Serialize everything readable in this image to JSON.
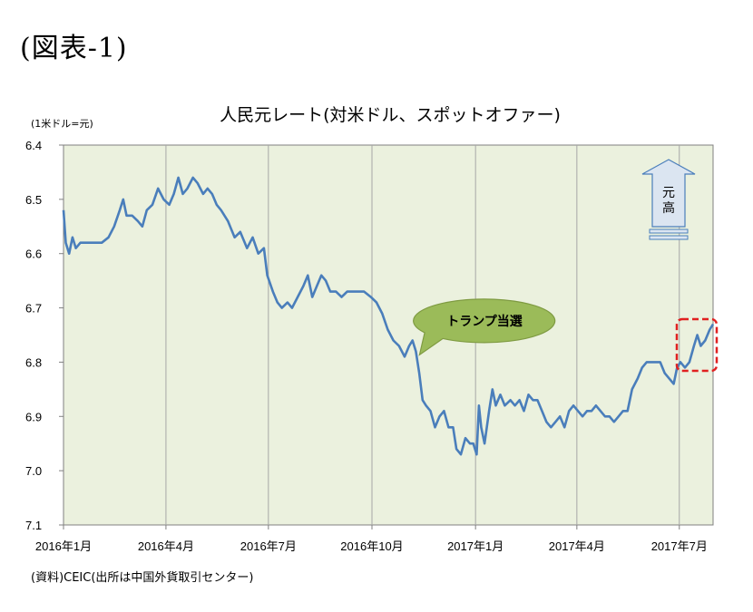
{
  "figure_label": "(図表-1)",
  "source_note": "(資料)CEIC(出所は中国外貨取引センター)",
  "callout_label": "トランプ当選",
  "arrow_label": [
    "元",
    "高"
  ],
  "colors": {
    "line": "#4a7ebb",
    "plot_bg": "#ebf1de",
    "callout_fill": "#9bbb59",
    "highlight": "#e02020",
    "arrow_fill": "#dbe5f1",
    "arrow_stroke": "#4a7ebb"
  },
  "chart_data": {
    "type": "line",
    "title": "人民元レート(対米ドル、スポットオファー)",
    "ylabel": "(1米ドル=元)",
    "ylim": [
      6.4,
      7.1
    ],
    "y_inverted": true,
    "yticks": [
      "6.4",
      "6.5",
      "6.6",
      "6.7",
      "6.8",
      "6.9",
      "7.0",
      "7.1"
    ],
    "xlim": [
      "2016-01-01",
      "2017-07-31"
    ],
    "xticks": [
      {
        "date": "2016-01-01",
        "label": "2016年1月"
      },
      {
        "date": "2016-04-01",
        "label": "2016年4月"
      },
      {
        "date": "2016-07-01",
        "label": "2016年7月"
      },
      {
        "date": "2016-10-01",
        "label": "2016年10月"
      },
      {
        "date": "2017-01-01",
        "label": "2017年1月"
      },
      {
        "date": "2017-04-01",
        "label": "2017年4月"
      },
      {
        "date": "2017-07-01",
        "label": "2017年7月"
      }
    ],
    "grid": "vertical",
    "annotation": {
      "label": "トランプ当選",
      "date": "2016-11-09",
      "value": 6.79
    },
    "series": [
      {
        "points": [
          [
            "2016-01-01",
            6.52
          ],
          [
            "2016-01-03",
            6.58
          ],
          [
            "2016-01-06",
            6.6
          ],
          [
            "2016-01-09",
            6.57
          ],
          [
            "2016-01-12",
            6.59
          ],
          [
            "2016-01-16",
            6.58
          ],
          [
            "2016-01-22",
            6.58
          ],
          [
            "2016-01-28",
            6.58
          ],
          [
            "2016-02-04",
            6.58
          ],
          [
            "2016-02-10",
            6.57
          ],
          [
            "2016-02-15",
            6.55
          ],
          [
            "2016-02-20",
            6.52
          ],
          [
            "2016-02-23",
            6.5
          ],
          [
            "2016-02-26",
            6.53
          ],
          [
            "2016-03-02",
            6.53
          ],
          [
            "2016-03-07",
            6.54
          ],
          [
            "2016-03-11",
            6.55
          ],
          [
            "2016-03-15",
            6.52
          ],
          [
            "2016-03-20",
            6.51
          ],
          [
            "2016-03-25",
            6.48
          ],
          [
            "2016-03-30",
            6.5
          ],
          [
            "2016-04-04",
            6.51
          ],
          [
            "2016-04-08",
            6.49
          ],
          [
            "2016-04-12",
            6.46
          ],
          [
            "2016-04-16",
            6.49
          ],
          [
            "2016-04-20",
            6.48
          ],
          [
            "2016-04-25",
            6.46
          ],
          [
            "2016-04-29",
            6.47
          ],
          [
            "2016-05-04",
            6.49
          ],
          [
            "2016-05-08",
            6.48
          ],
          [
            "2016-05-12",
            6.49
          ],
          [
            "2016-05-16",
            6.51
          ],
          [
            "2016-05-20",
            6.52
          ],
          [
            "2016-05-26",
            6.54
          ],
          [
            "2016-06-01",
            6.57
          ],
          [
            "2016-06-06",
            6.56
          ],
          [
            "2016-06-12",
            6.59
          ],
          [
            "2016-06-17",
            6.57
          ],
          [
            "2016-06-22",
            6.6
          ],
          [
            "2016-06-27",
            6.59
          ],
          [
            "2016-06-30",
            6.64
          ],
          [
            "2016-07-05",
            6.67
          ],
          [
            "2016-07-09",
            6.69
          ],
          [
            "2016-07-13",
            6.7
          ],
          [
            "2016-07-18",
            6.69
          ],
          [
            "2016-07-22",
            6.7
          ],
          [
            "2016-07-27",
            6.68
          ],
          [
            "2016-08-01",
            6.66
          ],
          [
            "2016-08-05",
            6.64
          ],
          [
            "2016-08-09",
            6.68
          ],
          [
            "2016-08-13",
            6.66
          ],
          [
            "2016-08-17",
            6.64
          ],
          [
            "2016-08-21",
            6.65
          ],
          [
            "2016-08-25",
            6.67
          ],
          [
            "2016-08-30",
            6.67
          ],
          [
            "2016-09-04",
            6.68
          ],
          [
            "2016-09-09",
            6.67
          ],
          [
            "2016-09-14",
            6.67
          ],
          [
            "2016-09-19",
            6.67
          ],
          [
            "2016-09-24",
            6.67
          ],
          [
            "2016-09-30",
            6.68
          ],
          [
            "2016-10-05",
            6.69
          ],
          [
            "2016-10-10",
            6.71
          ],
          [
            "2016-10-15",
            6.74
          ],
          [
            "2016-10-20",
            6.76
          ],
          [
            "2016-10-25",
            6.77
          ],
          [
            "2016-10-30",
            6.79
          ],
          [
            "2016-11-03",
            6.77
          ],
          [
            "2016-11-06",
            6.76
          ],
          [
            "2016-11-09",
            6.78
          ],
          [
            "2016-11-12",
            6.82
          ],
          [
            "2016-11-15",
            6.87
          ],
          [
            "2016-11-18",
            6.88
          ],
          [
            "2016-11-22",
            6.89
          ],
          [
            "2016-11-26",
            6.92
          ],
          [
            "2016-11-30",
            6.9
          ],
          [
            "2016-12-04",
            6.89
          ],
          [
            "2016-12-08",
            6.92
          ],
          [
            "2016-12-12",
            6.92
          ],
          [
            "2016-12-15",
            6.96
          ],
          [
            "2016-12-19",
            6.97
          ],
          [
            "2016-12-23",
            6.94
          ],
          [
            "2016-12-27",
            6.95
          ],
          [
            "2016-12-30",
            6.95
          ],
          [
            "2017-01-02",
            6.97
          ],
          [
            "2017-01-04",
            6.88
          ],
          [
            "2017-01-06",
            6.92
          ],
          [
            "2017-01-09",
            6.95
          ],
          [
            "2017-01-13",
            6.89
          ],
          [
            "2017-01-16",
            6.85
          ],
          [
            "2017-01-19",
            6.88
          ],
          [
            "2017-01-23",
            6.86
          ],
          [
            "2017-01-27",
            6.88
          ],
          [
            "2017-02-01",
            6.87
          ],
          [
            "2017-02-05",
            6.88
          ],
          [
            "2017-02-09",
            6.87
          ],
          [
            "2017-02-13",
            6.89
          ],
          [
            "2017-02-17",
            6.86
          ],
          [
            "2017-02-21",
            6.87
          ],
          [
            "2017-02-25",
            6.87
          ],
          [
            "2017-03-01",
            6.89
          ],
          [
            "2017-03-05",
            6.91
          ],
          [
            "2017-03-09",
            6.92
          ],
          [
            "2017-03-13",
            6.91
          ],
          [
            "2017-03-17",
            6.9
          ],
          [
            "2017-03-21",
            6.92
          ],
          [
            "2017-03-25",
            6.89
          ],
          [
            "2017-03-29",
            6.88
          ],
          [
            "2017-04-02",
            6.89
          ],
          [
            "2017-04-06",
            6.9
          ],
          [
            "2017-04-10",
            6.89
          ],
          [
            "2017-04-14",
            6.89
          ],
          [
            "2017-04-18",
            6.88
          ],
          [
            "2017-04-22",
            6.89
          ],
          [
            "2017-04-26",
            6.9
          ],
          [
            "2017-04-30",
            6.9
          ],
          [
            "2017-05-04",
            6.91
          ],
          [
            "2017-05-08",
            6.9
          ],
          [
            "2017-05-12",
            6.89
          ],
          [
            "2017-05-16",
            6.89
          ],
          [
            "2017-05-20",
            6.85
          ],
          [
            "2017-05-25",
            6.83
          ],
          [
            "2017-05-29",
            6.81
          ],
          [
            "2017-06-02",
            6.8
          ],
          [
            "2017-06-06",
            6.8
          ],
          [
            "2017-06-10",
            6.8
          ],
          [
            "2017-06-14",
            6.8
          ],
          [
            "2017-06-18",
            6.82
          ],
          [
            "2017-06-22",
            6.83
          ],
          [
            "2017-06-26",
            6.84
          ],
          [
            "2017-06-29",
            6.81
          ],
          [
            "2017-07-02",
            6.8
          ],
          [
            "2017-07-06",
            6.81
          ],
          [
            "2017-07-10",
            6.8
          ],
          [
            "2017-07-14",
            6.77
          ],
          [
            "2017-07-17",
            6.75
          ],
          [
            "2017-07-20",
            6.77
          ],
          [
            "2017-07-24",
            6.76
          ],
          [
            "2017-07-28",
            6.74
          ],
          [
            "2017-07-31",
            6.73
          ]
        ]
      }
    ]
  }
}
